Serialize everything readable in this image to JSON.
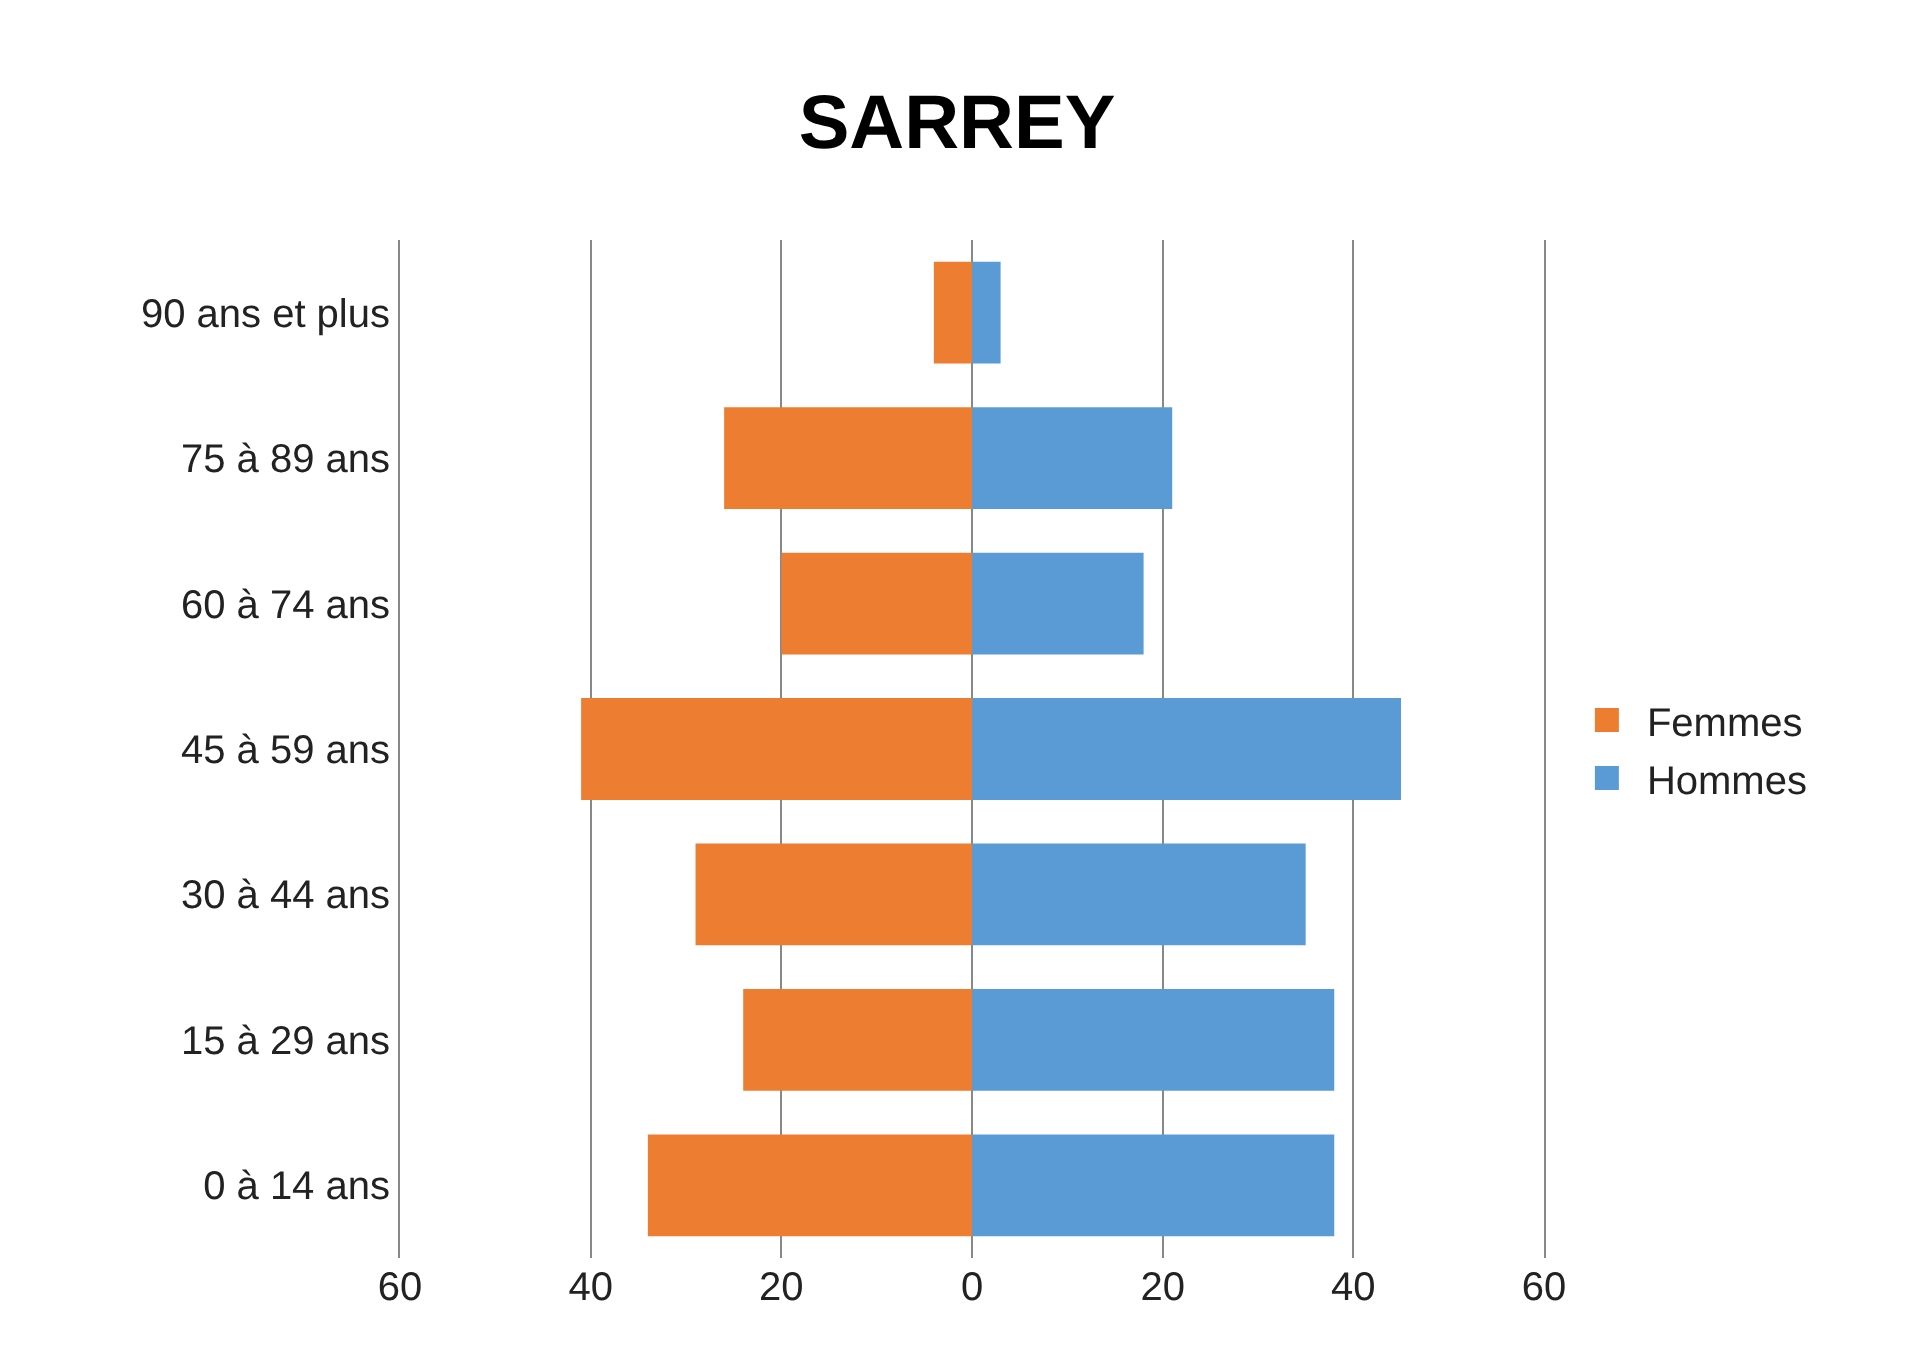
{
  "chart_data": {
    "type": "bar",
    "orientation": "horizontal",
    "title": "SARREY",
    "categories": [
      "90 ans et plus",
      "75 à 89 ans",
      "60 à 74 ans",
      "45 à 59 ans",
      "30 à 44 ans",
      "15 à 29 ans",
      "0 à 14 ans"
    ],
    "series": [
      {
        "name": "Femmes",
        "color": "#ed7d31",
        "values": [
          -4,
          -26,
          -20,
          -41,
          -29,
          -24,
          -34
        ]
      },
      {
        "name": "Hommes",
        "color": "#5b9bd5",
        "values": [
          3,
          21,
          18,
          45,
          35,
          38,
          38
        ]
      }
    ],
    "xlim": [
      -60,
      60
    ],
    "xticks": [
      {
        "value": -60,
        "label": "60"
      },
      {
        "value": -40,
        "label": "40"
      },
      {
        "value": -20,
        "label": "20"
      },
      0,
      20,
      40,
      60
    ],
    "grid": "x",
    "legend": "right",
    "stacked": true
  }
}
